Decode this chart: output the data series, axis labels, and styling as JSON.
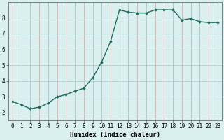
{
  "x": [
    0,
    1,
    2,
    3,
    4,
    5,
    6,
    7,
    8,
    9,
    10,
    11,
    12,
    13,
    14,
    15,
    16,
    17,
    18,
    19,
    20,
    21,
    22,
    23
  ],
  "y": [
    2.7,
    2.5,
    2.25,
    2.35,
    2.6,
    3.0,
    3.15,
    3.35,
    3.55,
    4.2,
    5.2,
    6.5,
    8.5,
    8.35,
    8.3,
    8.3,
    8.5,
    8.5,
    8.5,
    7.85,
    7.95,
    7.75,
    7.7,
    7.7
  ],
  "line_color": "#1a6b5a",
  "marker": "D",
  "marker_size": 1.8,
  "bg_color": "#d9f0ef",
  "grid_color": "#c0dede",
  "grid_color_major": "#c8b8b8",
  "xlabel": "Humidex (Indice chaleur)",
  "xlim": [
    -0.5,
    23.5
  ],
  "ylim": [
    1.5,
    9.0
  ],
  "yticks": [
    2,
    3,
    4,
    5,
    6,
    7,
    8
  ],
  "xticks": [
    0,
    1,
    2,
    3,
    4,
    5,
    6,
    7,
    8,
    9,
    10,
    11,
    12,
    13,
    14,
    15,
    16,
    17,
    18,
    19,
    20,
    21,
    22,
    23
  ],
  "xlabel_fontsize": 6.5,
  "tick_fontsize": 5.5,
  "line_width": 1.0
}
